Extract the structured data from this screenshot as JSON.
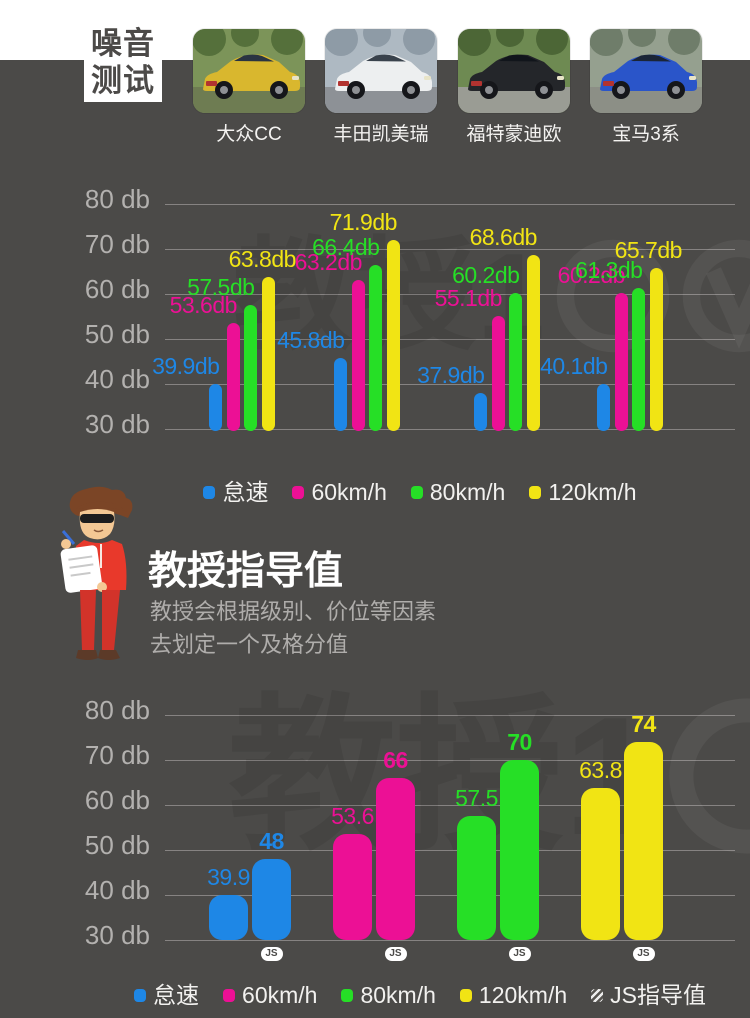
{
  "page": {
    "background": "#4B4A48",
    "top_strip_color": "#FFFFFF",
    "watermark_text": "教授1"
  },
  "header": {
    "title_line1": "噪音",
    "title_line2": "测试",
    "cars": [
      {
        "label": "大众CC",
        "body_color": "#D9B72E",
        "sky_color": "#7C9459",
        "accent_color": "#55703B",
        "ground_color": "#6E7C52",
        "window_color": "#2A3442"
      },
      {
        "label": "丰田凯美瑞",
        "body_color": "#EDEFF0",
        "sky_color": "#AEB9C2",
        "accent_color": "#8E9BA6",
        "ground_color": "#8D9196",
        "window_color": "#39424C"
      },
      {
        "label": "福特蒙迪欧",
        "body_color": "#24262A",
        "sky_color": "#6E8A52",
        "accent_color": "#4C6636",
        "ground_color": "#9A9C94",
        "window_color": "#11151B"
      },
      {
        "label": "宝马3系",
        "body_color": "#2A55C9",
        "sky_color": "#95A08F",
        "accent_color": "#6F7D6A",
        "ground_color": "#8C8F86",
        "window_color": "#1B2537"
      }
    ]
  },
  "chart_data": [
    {
      "type": "bar",
      "title": "噪音测试",
      "categories": [
        "大众CC",
        "丰田凯美瑞",
        "福特蒙迪欧",
        "宝马3系"
      ],
      "series": [
        {
          "name": "怠速",
          "color": "#1E87E6",
          "values": [
            39.9,
            45.8,
            37.9,
            40.1
          ]
        },
        {
          "name": "60km/h",
          "color": "#EC1095",
          "values": [
            53.6,
            63.2,
            55.1,
            60.2
          ]
        },
        {
          "name": "80km/h",
          "color": "#26DF26",
          "values": [
            57.5,
            66.4,
            60.2,
            61.3
          ]
        },
        {
          "name": "120km/h",
          "color": "#F1E414",
          "values": [
            63.8,
            71.9,
            68.6,
            65.7
          ]
        }
      ],
      "value_label_suffix": "db",
      "ylim": [
        30,
        80
      ],
      "ytick_labels": [
        "80 db",
        "70 db",
        "60 db",
        "50 db",
        "40 db",
        "30 db"
      ],
      "grid": true,
      "legend_position": "bottom"
    },
    {
      "type": "bar",
      "title": "教授指导值",
      "categories": [
        "怠速",
        "60km/h",
        "80km/h",
        "120km/h"
      ],
      "category_colors": [
        "#1E87E6",
        "#EC1095",
        "#26DF26",
        "#F1E414"
      ],
      "series": [
        {
          "name": "",
          "style": "solid",
          "values": [
            39.9,
            53.6,
            57.5,
            63.8
          ]
        },
        {
          "name": "JS指导值",
          "style": "hatched",
          "values": [
            48,
            66,
            70,
            74
          ],
          "badge": "JS"
        }
      ],
      "ylim": [
        30,
        80
      ],
      "ytick_labels": [
        "80 db",
        "70 db",
        "60 db",
        "50 db",
        "40 db",
        "30 db"
      ],
      "grid": true,
      "legend_position": "bottom"
    }
  ],
  "legend_top": {
    "items": [
      {
        "label": "怠速",
        "color": "#1E87E6"
      },
      {
        "label": "60km/h",
        "color": "#EC1095"
      },
      {
        "label": "80km/h",
        "color": "#26DF26"
      },
      {
        "label": "120km/h",
        "color": "#F1E414"
      }
    ]
  },
  "legend_bottom": {
    "items": [
      {
        "label": "怠速",
        "color": "#1E87E6"
      },
      {
        "label": "60km/h",
        "color": "#EC1095"
      },
      {
        "label": "80km/h",
        "color": "#26DF26"
      },
      {
        "label": "120km/h",
        "color": "#F1E414"
      },
      {
        "label": "JS指导值",
        "hatched": true
      }
    ]
  },
  "guide_section": {
    "title": "教授指导值",
    "description_line1": "教授会根据级别、价位等因素",
    "description_line2": "去划定一个及格分值"
  },
  "badges": {
    "js": "JS"
  }
}
